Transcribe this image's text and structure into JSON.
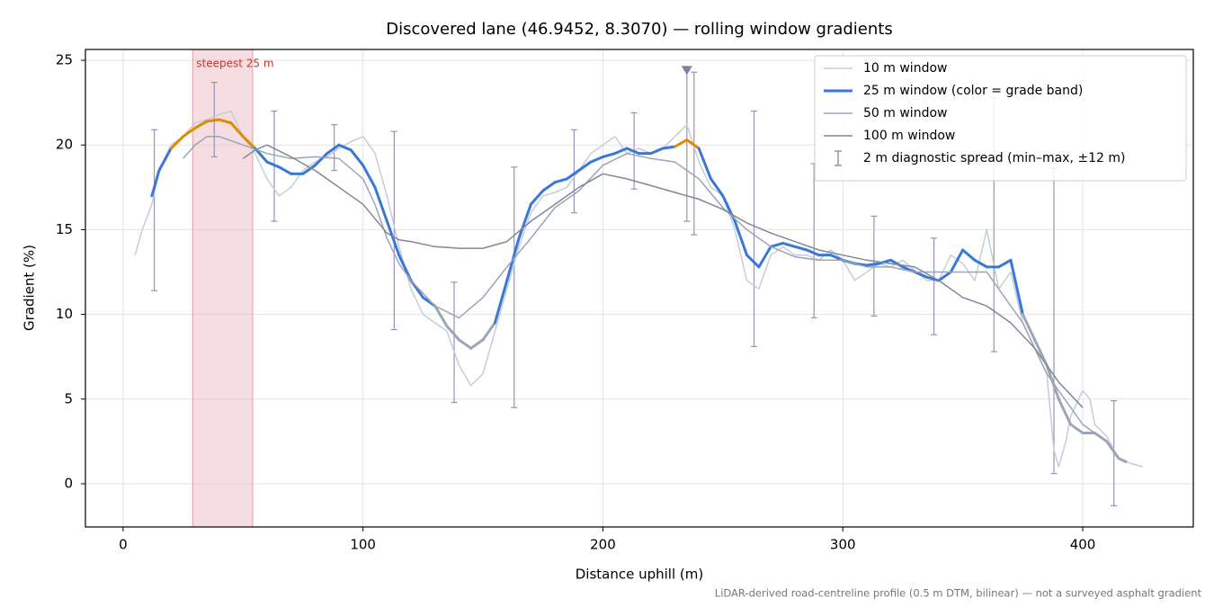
{
  "chart_data": {
    "type": "line",
    "title": "Discovered lane (46.9452, 8.3070) — rolling window gradients",
    "x_label": "Distance uphill (m)",
    "y_label": "Gradient (%)",
    "footnote": "LiDAR-derived road-centreline profile (0.5 m DTM, bilinear) — not a surveyed asphalt gradient",
    "xlim": [
      -15.7,
      446.1
    ],
    "ylim": [
      -2.55,
      25.64
    ],
    "xticks": [
      0,
      100,
      200,
      300,
      400
    ],
    "yticks": [
      0,
      5,
      10,
      15,
      20,
      25
    ],
    "grid": true,
    "legend": "upper right",
    "highlight": {
      "label": "steepest 25 m",
      "x": [
        29,
        54
      ],
      "color": "#e8b4bc"
    },
    "peak_marker": {
      "x": 235,
      "y": 24.4,
      "color": "#8a7aa8"
    },
    "band_limits": [
      10,
      20
    ],
    "band_colors": [
      "#9aa7b8",
      "#3a78d8",
      "#e08a00"
    ],
    "series": [
      {
        "name": "10 m window",
        "color": "#c5cdd8",
        "width": 1.5,
        "x": [
          5,
          8,
          12,
          15,
          20,
          25,
          30,
          35,
          40,
          45,
          50,
          55,
          60,
          65,
          70,
          75,
          80,
          85,
          90,
          95,
          100,
          105,
          110,
          115,
          120,
          125,
          130,
          135,
          140,
          145,
          150,
          155,
          160,
          165,
          170,
          175,
          180,
          185,
          190,
          195,
          200,
          205,
          210,
          215,
          220,
          225,
          230,
          235,
          240,
          245,
          250,
          255,
          260,
          265,
          270,
          275,
          280,
          285,
          290,
          295,
          300,
          305,
          310,
          315,
          320,
          325,
          330,
          335,
          340,
          345,
          350,
          355,
          360,
          365,
          370,
          375,
          380,
          385,
          388,
          390,
          393,
          395,
          400,
          403,
          405,
          410,
          415,
          420,
          425
        ],
        "values": [
          13.5,
          15,
          16.5,
          18.5,
          20,
          20.5,
          21.3,
          21.5,
          21.8,
          22,
          20.5,
          19.5,
          18,
          17,
          17.5,
          18.5,
          19,
          19.3,
          19.8,
          20.2,
          20.5,
          19.5,
          17,
          14,
          11.5,
          10,
          9.5,
          9,
          7,
          5.8,
          6.5,
          9,
          11.5,
          14,
          16,
          17,
          17.2,
          17.5,
          18.5,
          19.5,
          20,
          20.5,
          19.5,
          19.8,
          19.5,
          19.8,
          20.5,
          21.2,
          19,
          17.5,
          17,
          15,
          12,
          11.5,
          13.5,
          14,
          13.5,
          13.5,
          13.2,
          13.8,
          13.2,
          12,
          12.5,
          13,
          12.8,
          13.2,
          12.6,
          12,
          12,
          13.5,
          13,
          12,
          15,
          11.5,
          12.5,
          9.5,
          8,
          6.5,
          2,
          1,
          2.5,
          4,
          5.5,
          5,
          3.5,
          2.8,
          1.5,
          1.2,
          1
        ]
      },
      {
        "name": "25 m window (color = grade band)",
        "color": "#3a78d8",
        "width": 3,
        "banded": true,
        "x": [
          12,
          15,
          20,
          25,
          30,
          35,
          40,
          45,
          50,
          55,
          60,
          65,
          70,
          75,
          80,
          85,
          90,
          95,
          100,
          105,
          110,
          115,
          120,
          125,
          130,
          135,
          140,
          145,
          150,
          155,
          160,
          165,
          170,
          175,
          180,
          185,
          190,
          195,
          200,
          205,
          210,
          215,
          220,
          225,
          230,
          235,
          240,
          245,
          250,
          255,
          260,
          265,
          270,
          275,
          280,
          285,
          290,
          295,
          300,
          305,
          310,
          315,
          320,
          325,
          330,
          335,
          340,
          345,
          350,
          355,
          360,
          365,
          370,
          375,
          380,
          385,
          390,
          395,
          400,
          405,
          410,
          415,
          418
        ],
        "values": [
          17,
          18.5,
          19.8,
          20.5,
          21,
          21.4,
          21.5,
          21.3,
          20.5,
          19.8,
          19,
          18.7,
          18.3,
          18.3,
          18.8,
          19.5,
          20,
          19.7,
          18.8,
          17.5,
          15.5,
          13.5,
          12,
          11,
          10.5,
          9.3,
          8.5,
          8,
          8.5,
          9.5,
          12,
          14.5,
          16.5,
          17.3,
          17.8,
          18,
          18.5,
          19,
          19.3,
          19.5,
          19.8,
          19.5,
          19.5,
          19.8,
          19.9,
          20.3,
          19.8,
          18,
          17,
          15.5,
          13.5,
          12.8,
          14,
          14.2,
          14,
          13.8,
          13.5,
          13.5,
          13.2,
          13,
          12.9,
          13,
          13.2,
          12.8,
          12.5,
          12.2,
          12,
          12.5,
          13.8,
          13.2,
          12.8,
          12.8,
          13.2,
          10,
          8.5,
          7,
          5,
          3.5,
          3,
          3,
          2.5,
          1.5,
          1.3
        ]
      },
      {
        "name": "50 m window",
        "color": "#9aa5b8",
        "width": 1.5,
        "x": [
          25,
          30,
          35,
          40,
          50,
          60,
          70,
          80,
          90,
          100,
          105,
          110,
          115,
          120,
          130,
          140,
          150,
          160,
          170,
          180,
          190,
          200,
          210,
          220,
          230,
          240,
          250,
          260,
          270,
          280,
          290,
          300,
          310,
          320,
          330,
          340,
          350,
          360,
          365,
          370,
          375,
          380,
          385,
          390,
          395,
          400,
          405,
          410
        ],
        "values": [
          19.2,
          20,
          20.5,
          20.5,
          20,
          19.5,
          19.2,
          19.3,
          19.2,
          18,
          16.5,
          14.5,
          13,
          12,
          10.5,
          9.8,
          11,
          12.8,
          14.5,
          16.3,
          17.3,
          18.8,
          19.5,
          19.2,
          19,
          18,
          16.3,
          15,
          14,
          13.4,
          13.2,
          13.2,
          12.8,
          12.8,
          12.5,
          12.5,
          12.5,
          12.5,
          11.5,
          10.5,
          9.5,
          8,
          6.5,
          5.5,
          4.5,
          3.5,
          3,
          2.5
        ]
      },
      {
        "name": "100 m window",
        "color": "#7f8899",
        "width": 1.5,
        "x": [
          50,
          55,
          60,
          70,
          80,
          90,
          100,
          110,
          115,
          120,
          130,
          140,
          150,
          160,
          170,
          180,
          190,
          200,
          210,
          220,
          230,
          240,
          250,
          260,
          270,
          280,
          290,
          300,
          310,
          320,
          330,
          340,
          350,
          360,
          370,
          380,
          390,
          400
        ],
        "values": [
          19.2,
          19.7,
          20,
          19.3,
          18.5,
          17.5,
          16.5,
          14.8,
          14.4,
          14.3,
          14,
          13.9,
          13.9,
          14.3,
          15.5,
          16.5,
          17.5,
          18.3,
          18,
          17.6,
          17.2,
          16.8,
          16.2,
          15.4,
          14.8,
          14.3,
          13.8,
          13.5,
          13.2,
          13,
          12.8,
          12,
          11,
          10.5,
          9.5,
          8,
          6,
          4.5
        ]
      }
    ],
    "errorbars": {
      "name": "2 m diagnostic spread (min–max, ±12 m)",
      "color": "#9a90b8",
      "x": [
        13,
        38,
        63,
        88,
        113,
        138,
        163,
        188,
        213,
        235,
        238,
        263,
        288,
        313,
        338,
        363,
        388,
        413
      ],
      "low": [
        11.4,
        19.3,
        15.5,
        18.5,
        9.1,
        4.8,
        4.5,
        16,
        17.4,
        15.5,
        14.7,
        8.1,
        9.8,
        9.9,
        8.8,
        7.8,
        0.6,
        -1.3
      ],
      "high": [
        20.9,
        23.7,
        22,
        21.2,
        20.8,
        11.9,
        18.7,
        20.9,
        21.9,
        24.4,
        24.3,
        22,
        18.9,
        15.8,
        14.5,
        22.8,
        18.6,
        4.9
      ]
    }
  }
}
